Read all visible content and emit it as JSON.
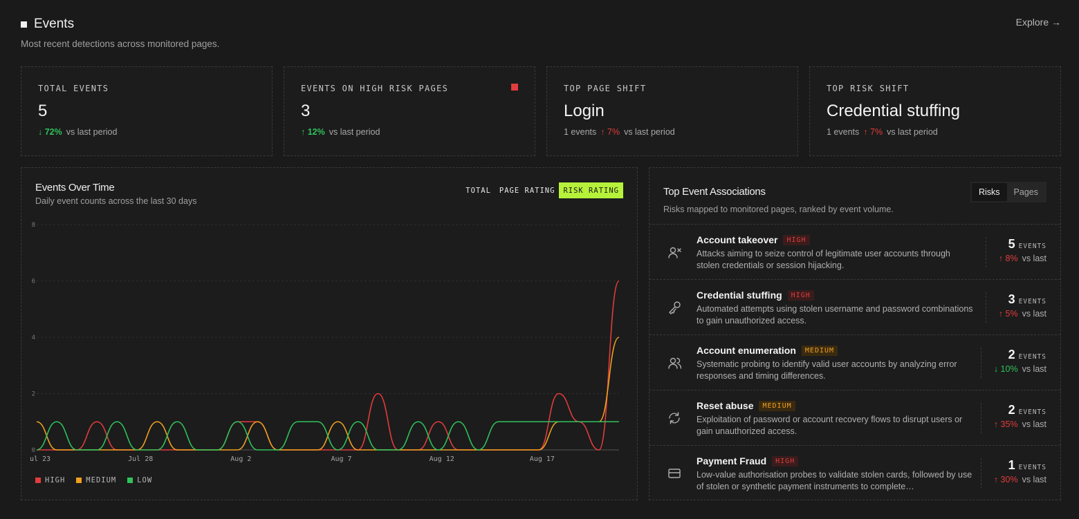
{
  "header": {
    "title": "Events",
    "subtitle": "Most recent detections across monitored pages.",
    "explore": "Explore →"
  },
  "kpis": [
    {
      "label": "TOTAL EVENTS",
      "value": "5",
      "delta_arrow": "↓",
      "delta": "72%",
      "delta_suffix": "vs last period",
      "prefix": ""
    },
    {
      "label": "EVENTS ON HIGH RISK PAGES",
      "value": "3",
      "delta_arrow": "↑",
      "delta": "12%",
      "delta_suffix": "vs last period",
      "prefix": ""
    },
    {
      "label": "TOP PAGE SHIFT",
      "value": "Login",
      "prefix": "1 events",
      "delta_arrow": "↑",
      "delta": "7%",
      "delta_suffix": "vs last period"
    },
    {
      "label": "TOP RISK SHIFT",
      "value": "Credential stuffing",
      "prefix": "1 events",
      "delta_arrow": "↑",
      "delta": "7%",
      "delta_suffix": "vs last period"
    }
  ],
  "colors": {
    "high": "#e23c3c",
    "medium": "#f0a020",
    "low": "#2fc25b",
    "accent": "#b6f23a"
  },
  "chart": {
    "title": "Events Over Time",
    "subtitle": "Daily event counts across the last 30 days",
    "tabs": [
      "TOTAL",
      "PAGE RATING",
      "RISK RATING"
    ],
    "active_tab": "RISK RATING",
    "legend": [
      "HIGH",
      "MEDIUM",
      "LOW"
    ]
  },
  "chart_data": {
    "type": "line",
    "x": [
      "Jul 23",
      "Jul 24",
      "Jul 25",
      "Jul 26",
      "Jul 27",
      "Jul 28",
      "Jul 29",
      "Jul 30",
      "Jul 31",
      "Aug 1",
      "Aug 2",
      "Aug 3",
      "Aug 4",
      "Aug 5",
      "Aug 6",
      "Aug 7",
      "Aug 8",
      "Aug 9",
      "Aug 10",
      "Aug 11",
      "Aug 12",
      "Aug 13",
      "Aug 14",
      "Aug 15",
      "Aug 16",
      "Aug 17",
      "Aug 18",
      "Aug 19",
      "Aug 20",
      "Aug 21"
    ],
    "x_tick_labels": [
      "ul 23",
      "Jul 28",
      "Aug 2",
      "Aug 7",
      "Aug 12",
      "Aug 17"
    ],
    "y_tick_labels": [
      "0",
      "2",
      "4",
      "6",
      "8"
    ],
    "ylim": [
      0,
      8
    ],
    "series": [
      {
        "name": "HIGH",
        "values": [
          0,
          0,
          0,
          1,
          0,
          0,
          0,
          0,
          0,
          0,
          1,
          1,
          0,
          0,
          0,
          0,
          0,
          2,
          0,
          0,
          1,
          0,
          0,
          0,
          0,
          0,
          2,
          1,
          0,
          6
        ]
      },
      {
        "name": "MEDIUM",
        "values": [
          1,
          0,
          0,
          0,
          0,
          0,
          1,
          0,
          0,
          0,
          0,
          1,
          0,
          0,
          0,
          1,
          0,
          0,
          0,
          0,
          0,
          0,
          0,
          0,
          0,
          0,
          1,
          1,
          1,
          4
        ]
      },
      {
        "name": "LOW",
        "values": [
          0,
          1,
          0,
          0,
          1,
          0,
          0,
          1,
          0,
          0,
          1,
          0,
          0,
          1,
          1,
          0,
          1,
          0,
          0,
          1,
          0,
          1,
          0,
          1,
          1,
          1,
          1,
          1,
          1,
          1
        ]
      }
    ]
  },
  "associations": {
    "title": "Top Event Associations",
    "subtitle": "Risks mapped to monitored pages, ranked by event volume.",
    "segments": [
      "Risks",
      "Pages"
    ],
    "active_segment": "Risks",
    "events_label": "EVENTS",
    "vs_label": "vs last",
    "items": [
      {
        "name": "Account takeover",
        "badge": "HIGH",
        "level": "high",
        "icon": "user-x-icon",
        "desc": "Attacks aiming to seize control of legitimate user accounts through stolen credentials or session hijacking.",
        "count": "5",
        "arrow": "↑",
        "delta": "8%",
        "trend": "red"
      },
      {
        "name": "Credential stuffing",
        "badge": "HIGH",
        "level": "high",
        "icon": "key-icon",
        "desc": "Automated attempts using stolen username and password combinations to gain unauthorized access.",
        "count": "3",
        "arrow": "↑",
        "delta": "5%",
        "trend": "red"
      },
      {
        "name": "Account enumeration",
        "badge": "MEDIUM",
        "level": "medium",
        "icon": "users-icon",
        "desc": "Systematic probing to identify valid user accounts by analyzing error responses and timing differences.",
        "count": "2",
        "arrow": "↓",
        "delta": "10%",
        "trend": "green"
      },
      {
        "name": "Reset abuse",
        "badge": "MEDIUM",
        "level": "medium",
        "icon": "refresh-icon",
        "desc": "Exploitation of password or account recovery flows to disrupt users or gain unauthorized access.",
        "count": "2",
        "arrow": "↑",
        "delta": "35%",
        "trend": "red"
      },
      {
        "name": "Payment Fraud",
        "badge": "HIGH",
        "level": "high",
        "icon": "credit-card-icon",
        "desc": "Low-value authorisation probes to validate stolen cards, followed by use of stolen or synthetic payment instruments to complete…",
        "count": "1",
        "arrow": "↑",
        "delta": "30%",
        "trend": "red"
      }
    ]
  }
}
